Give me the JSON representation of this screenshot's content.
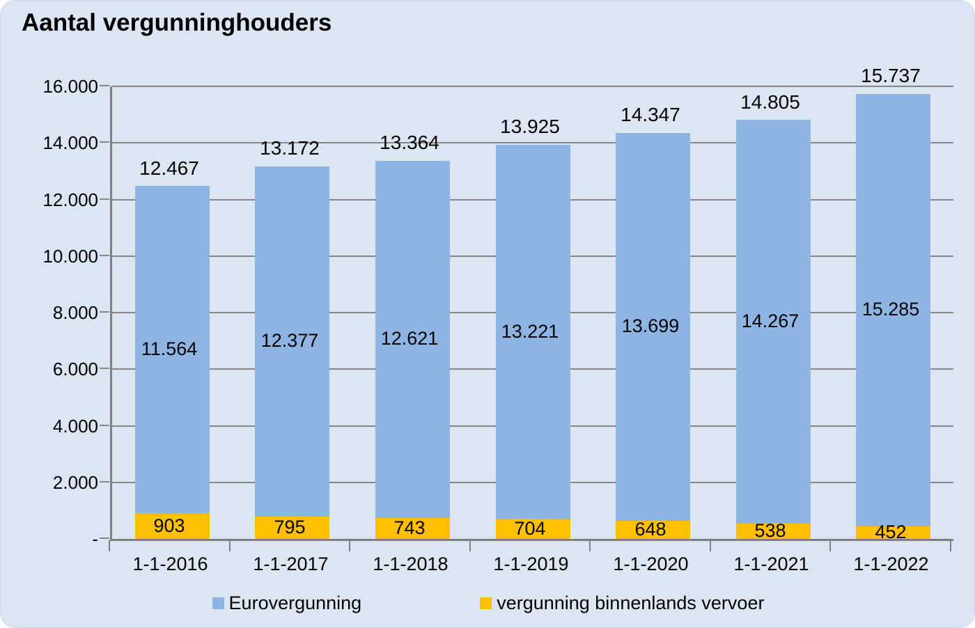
{
  "chart_data": {
    "type": "bar",
    "stacked": true,
    "title": "Aantal vergunninghouders",
    "categories": [
      "1-1-2016",
      "1-1-2017",
      "1-1-2018",
      "1-1-2019",
      "1-1-2020",
      "1-1-2021",
      "1-1-2022"
    ],
    "series": [
      {
        "name": "Eurovergunning",
        "color": "#8eb4e3",
        "values": [
          11564,
          12377,
          12621,
          13221,
          13699,
          14267,
          15285
        ]
      },
      {
        "name": "vergunning binnenlands vervoer",
        "color": "#ffc000",
        "values": [
          903,
          795,
          743,
          704,
          648,
          538,
          452
        ]
      }
    ],
    "totals": [
      12467,
      13172,
      13364,
      13925,
      14347,
      14805,
      15737
    ],
    "total_labels": [
      "12.467",
      "13.172",
      "13.364",
      "13.925",
      "14.347",
      "14.805",
      "15.737"
    ],
    "series_value_labels": [
      [
        "11.564",
        "12.377",
        "12.621",
        "13.221",
        "13.699",
        "14.267",
        "15.285"
      ],
      [
        "903",
        "795",
        "743",
        "704",
        "648",
        "538",
        "452"
      ]
    ],
    "ylim": [
      0,
      16000
    ],
    "ytick_interval": 2000,
    "ytick_labels": [
      "-",
      "2.000",
      "4.000",
      "6.000",
      "8.000",
      "10.000",
      "12.000",
      "14.000",
      "16.000"
    ],
    "grid": true,
    "legend_position": "bottom",
    "number_format": "thousands-dot"
  },
  "colors": {
    "card_background": "#dce6f2",
    "page_background": "#ffffff",
    "gridline": "#868686",
    "axis": "#7f7f7f",
    "text": "#000000",
    "eurovergunning": "#8eb4e3",
    "binnenlands_vervoer": "#ffc000"
  }
}
